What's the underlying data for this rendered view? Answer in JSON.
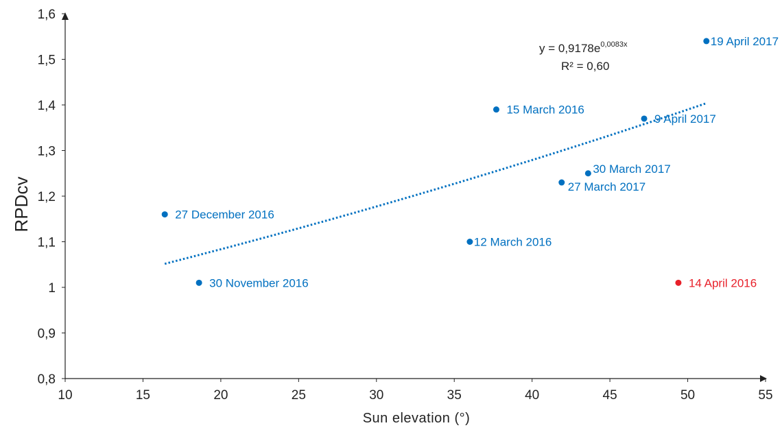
{
  "chart_data": {
    "type": "scatter",
    "xlabel": "Sun elevation (°)",
    "ylabel": "RPDcv",
    "xlim": [
      10,
      55
    ],
    "ylim": [
      0.8,
      1.6
    ],
    "x_ticks": [
      "10",
      "15",
      "20",
      "25",
      "30",
      "35",
      "40",
      "45",
      "50",
      "55"
    ],
    "y_ticks": [
      "0,8",
      "0,9",
      "1",
      "1,1",
      "1,2",
      "1,3",
      "1,4",
      "1,5",
      "1,6"
    ],
    "grid": false,
    "points": [
      {
        "x": 16.4,
        "y": 1.16,
        "label": "27 December 2016",
        "color": "#0070c0",
        "label_side": "right"
      },
      {
        "x": 18.6,
        "y": 1.01,
        "label": "30 November 2016",
        "color": "#0070c0",
        "label_side": "right"
      },
      {
        "x": 36.0,
        "y": 1.1,
        "label": "12 March 2016",
        "color": "#0070c0",
        "label_side": "right-tight"
      },
      {
        "x": 37.7,
        "y": 1.39,
        "label": "15 March 2016",
        "color": "#0070c0",
        "label_side": "right"
      },
      {
        "x": 41.9,
        "y": 1.23,
        "label": "27 March 2017",
        "color": "#0070c0",
        "label_side": "below-right"
      },
      {
        "x": 43.6,
        "y": 1.25,
        "label": "30 March 2017",
        "color": "#0070c0",
        "label_side": "above-right"
      },
      {
        "x": 47.2,
        "y": 1.37,
        "label": "9 April 2017",
        "color": "#0070c0",
        "label_side": "right"
      },
      {
        "x": 49.4,
        "y": 1.01,
        "label": "14 April 2016",
        "color": "#e8202a",
        "label_side": "right"
      },
      {
        "x": 51.2,
        "y": 1.54,
        "label": "19 April 2017",
        "color": "#0070c0",
        "label_side": "right-tight"
      }
    ],
    "trendline": {
      "type": "exponential",
      "a": 0.9178,
      "b": 0.0083,
      "x_range": [
        16.4,
        51.2
      ],
      "style": "dotted",
      "color": "#0070c0"
    },
    "equation": {
      "prefix": "y = 0,9178e",
      "exponent": "0,0083x",
      "r2": "R² = 0,60"
    },
    "colors": {
      "series": "#0070c0",
      "highlight": "#e8202a",
      "axis": "#222222"
    }
  }
}
